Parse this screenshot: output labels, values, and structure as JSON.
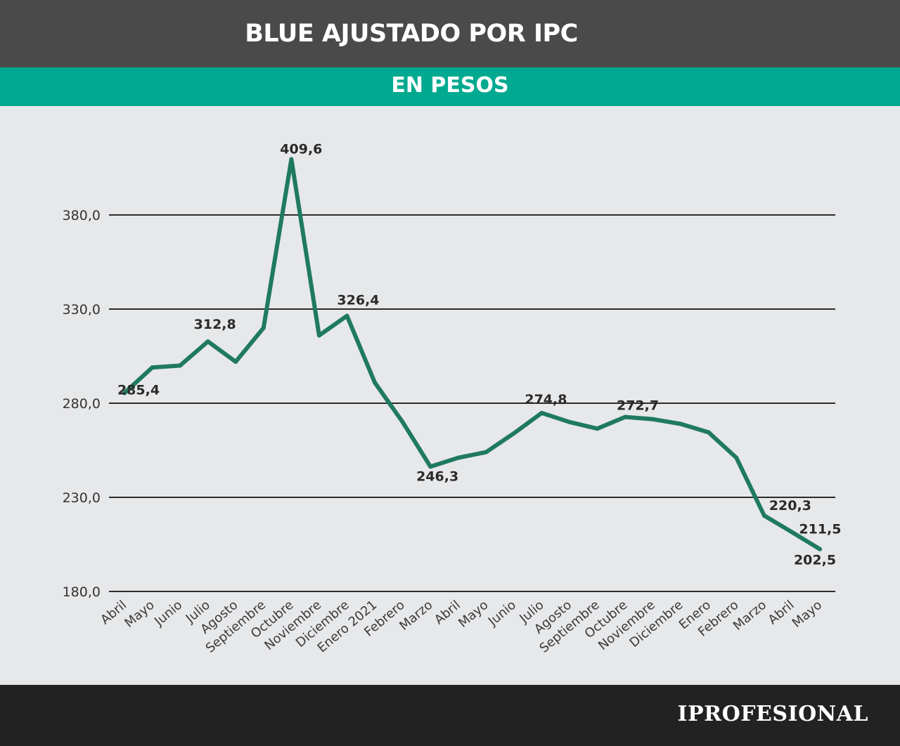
{
  "header": {
    "title": "BLUE AJUSTADO POR IPC"
  },
  "subheader": {
    "title": "EN PESOS"
  },
  "footer": {
    "brand": "IPROFESIONAL"
  },
  "colors": {
    "header_bg": "#4a4a4a",
    "subheader_bg": "#00a98f",
    "background": "#e7e8ea",
    "line": "#1f7a5f",
    "grid": "#2b2b2b",
    "footer_bg": "#222222"
  },
  "chart_data": {
    "type": "line",
    "title": "BLUE AJUSTADO POR IPC",
    "subtitle": "EN PESOS",
    "xlabel": "",
    "ylabel": "",
    "ylim": [
      180,
      380
    ],
    "yticks": [
      180,
      230,
      280,
      330,
      380
    ],
    "ytick_labels": [
      "180,0",
      "230,0",
      "280,0",
      "330,0",
      "380,0"
    ],
    "grid": true,
    "categories": [
      "Abril",
      "Mayo",
      "Junio",
      "Julio",
      "Agosto",
      "Septiembre",
      "Octubre",
      "Noviembre",
      "Diciembre",
      "Enero 2021",
      "Febrero",
      "Marzo",
      "Abril",
      "Mayo",
      "Junio",
      "Julio",
      "Agosto",
      "Septiembre",
      "Octubre",
      "Noviembre",
      "Diciembre",
      "Enero",
      "Febrero",
      "Marzo",
      "Abril",
      "Mayo"
    ],
    "values": [
      285.4,
      299,
      300,
      312.8,
      302,
      320,
      409.6,
      316,
      326.4,
      291,
      270,
      246.3,
      251,
      254,
      264,
      274.8,
      270,
      266.5,
      272.7,
      271.5,
      269,
      264.5,
      251,
      220.3,
      211.5,
      202.5
    ],
    "point_labels": [
      {
        "index": 0,
        "text": "285,4"
      },
      {
        "index": 3,
        "text": "312,8"
      },
      {
        "index": 6,
        "text": "409,6"
      },
      {
        "index": 8,
        "text": "326,4"
      },
      {
        "index": 11,
        "text": "246,3"
      },
      {
        "index": 15,
        "text": "274,8"
      },
      {
        "index": 18,
        "text": "272,7"
      },
      {
        "index": 23,
        "text": "220,3"
      },
      {
        "index": 24,
        "text": "211,5"
      },
      {
        "index": 25,
        "text": "202,5"
      }
    ]
  }
}
